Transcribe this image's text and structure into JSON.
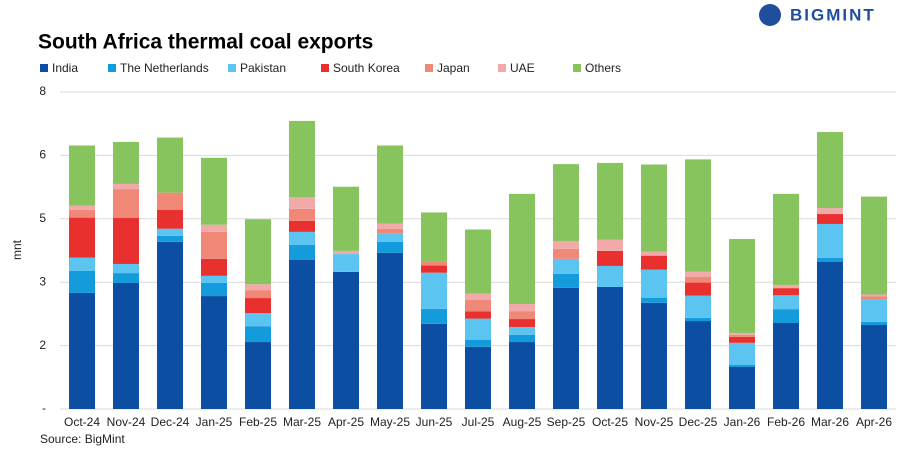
{
  "brand": "BIGMINT",
  "chart_data": {
    "type": "stacked_bar",
    "title": "South Africa thermal coal exports",
    "y_label": "mnt",
    "source": "Source: BigMint",
    "categories": [
      "Oct-24",
      "Nov-24",
      "Dec-24",
      "Jan-25",
      "Feb-25",
      "Mar-25",
      "Apr-25",
      "May-25",
      "Jun-25",
      "Jul-25",
      "Aug-25",
      "Sep-25",
      "Oct-25",
      "Nov-25",
      "Dec-25",
      "Jan-26",
      "Feb-26",
      "Mar-26",
      "Apr-26"
    ],
    "ylim": [
      0,
      8
    ],
    "yticks": [
      {
        "value": 0,
        "label": "-"
      },
      {
        "value": 1.6,
        "label": "2"
      },
      {
        "value": 3.2,
        "label": "3"
      },
      {
        "value": 4.8,
        "label": "5"
      },
      {
        "value": 6.4,
        "label": "6"
      },
      8
    ],
    "grid": true,
    "series": [
      {
        "name": "India",
        "color": "#0b4ea2",
        "values": [
          2.93,
          3.18,
          4.22,
          2.85,
          1.69,
          3.76,
          3.46,
          3.94,
          2.15,
          1.57,
          1.69,
          3.06,
          3.08,
          2.68,
          2.22,
          1.06,
          2.17,
          3.71,
          2.12
        ]
      },
      {
        "name": "The Netherlands",
        "color": "#149bdc",
        "values": [
          0.56,
          0.25,
          0.15,
          0.33,
          0.4,
          0.38,
          0,
          0.28,
          0.38,
          0.18,
          0.18,
          0.35,
          0,
          0.13,
          0.08,
          0.05,
          0.35,
          0.1,
          0.08
        ]
      },
      {
        "name": "Pakistan",
        "color": "#5bc4f0",
        "values": [
          0.33,
          0.23,
          0.18,
          0.18,
          0.33,
          0.33,
          0.45,
          0.2,
          0.91,
          0.53,
          0.2,
          0.38,
          0.53,
          0.71,
          0.56,
          0.56,
          0.35,
          0.86,
          0.56
        ]
      },
      {
        "name": "South Korea",
        "color": "#e8312f",
        "values": [
          1.01,
          1.16,
          0.48,
          0.43,
          0.38,
          0.28,
          0,
          0,
          0.18,
          0.18,
          0.2,
          0,
          0.38,
          0.35,
          0.33,
          0.15,
          0.18,
          0.25,
          0
        ]
      },
      {
        "name": "Japan",
        "color": "#f08878",
        "values": [
          0.2,
          0.73,
          0.43,
          0.68,
          0.2,
          0.3,
          0,
          0.13,
          0.1,
          0.3,
          0.2,
          0.25,
          0,
          0,
          0.15,
          0.05,
          0,
          0,
          0.08
        ]
      },
      {
        "name": "UAE",
        "color": "#f2a9a9",
        "values": [
          0.1,
          0.13,
          0,
          0.18,
          0.15,
          0.3,
          0.08,
          0.13,
          0,
          0.15,
          0.18,
          0.2,
          0.28,
          0.1,
          0.13,
          0.05,
          0.08,
          0.15,
          0.05
        ]
      },
      {
        "name": "Others",
        "color": "#88c45e",
        "values": [
          1.52,
          1.06,
          1.39,
          1.69,
          1.64,
          1.92,
          1.62,
          1.97,
          1.24,
          1.62,
          2.78,
          1.94,
          1.94,
          2.2,
          2.83,
          2.37,
          2.3,
          1.92,
          2.47
        ]
      }
    ]
  }
}
